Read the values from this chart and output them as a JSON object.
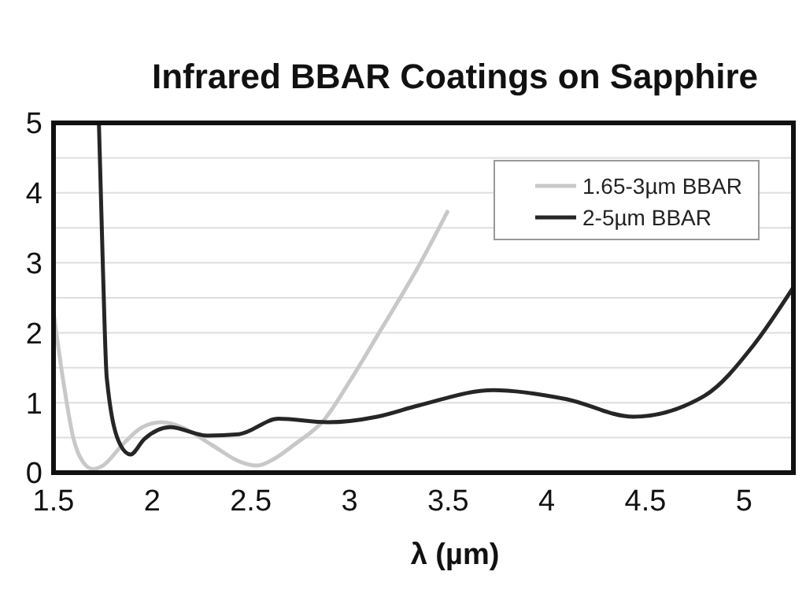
{
  "chart_data": {
    "type": "line",
    "title": "Infrared BBAR Coatings on Sapphire",
    "xlabel": "λ (µm)",
    "xlim": [
      1.5,
      5.25
    ],
    "xticks": [
      {
        "value": 1.5,
        "label": "1.5"
      },
      2,
      {
        "value": 2.5,
        "label": "2.5"
      },
      3,
      {
        "value": 3.5,
        "label": "3.5"
      },
      4,
      {
        "value": 4.5,
        "label": "4.5"
      },
      5
    ],
    "ylim": [
      0,
      5
    ],
    "yticks": [
      0,
      {
        "value": 0.5,
        "label": null
      },
      1,
      {
        "value": 1.5,
        "label": null
      },
      2,
      {
        "value": 2.5,
        "label": null
      },
      3,
      {
        "value": 3.5,
        "label": null
      },
      4,
      {
        "value": 4.5,
        "label": null
      },
      5
    ],
    "grid": "y",
    "legend": "top right",
    "marker": "none",
    "line_style": "solid",
    "series": [
      {
        "name": "1.65-3µm BBAR",
        "color": "#c8c8c8",
        "x": [
          1.5,
          1.55,
          1.6,
          1.65,
          1.7,
          1.75,
          1.85,
          1.95,
          2.05,
          2.15,
          2.3,
          2.45,
          2.53,
          2.62,
          2.72,
          2.87,
          3.0,
          3.15,
          3.35,
          3.5
        ],
        "values": [
          2.3,
          1.3,
          0.5,
          0.15,
          0.05,
          0.1,
          0.4,
          0.65,
          0.72,
          0.65,
          0.4,
          0.15,
          0.1,
          0.2,
          0.4,
          0.75,
          1.3,
          2.0,
          2.95,
          3.75
        ]
      },
      {
        "name": "2-5µm BBAR",
        "color": "#262626",
        "x": [
          1.73,
          1.75,
          1.77,
          1.84,
          1.89,
          1.96,
          2.09,
          2.28,
          2.44,
          2.64,
          2.89,
          3.14,
          3.35,
          3.73,
          4.1,
          4.44,
          4.8,
          5.05,
          5.25
        ],
        "values": [
          5,
          2.96,
          1.35,
          0.39,
          0.26,
          0.48,
          0.65,
          0.53,
          0.55,
          0.77,
          0.72,
          0.8,
          0.96,
          1.18,
          1.05,
          0.8,
          1.1,
          1.83,
          2.65
        ]
      }
    ]
  }
}
